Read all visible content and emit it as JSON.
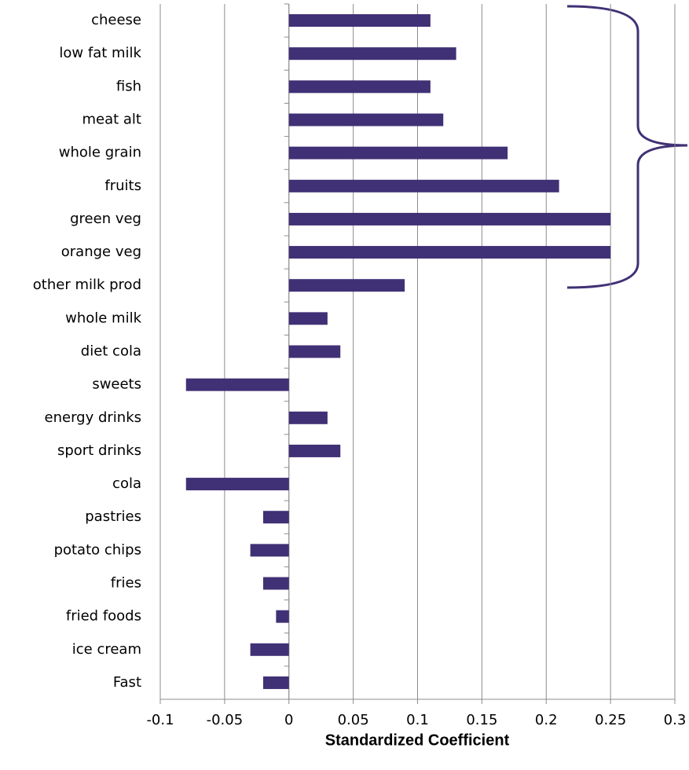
{
  "chart_data": {
    "type": "barh",
    "x_label": "Standardized Coefficient",
    "categories": [
      "cheese",
      "low fat milk",
      "fish",
      "meat alt",
      "whole grain",
      "fruits",
      "green veg",
      "orange veg",
      "other milk prod",
      "whole milk",
      "diet cola",
      "sweets",
      "energy drinks",
      "sport drinks",
      "cola",
      "pastries",
      "potato chips",
      "fries",
      "fried foods",
      "ice cream",
      "Fast"
    ],
    "values": [
      0.11,
      0.13,
      0.11,
      0.12,
      0.17,
      0.21,
      0.25,
      0.25,
      0.09,
      0.03,
      0.04,
      -0.08,
      0.03,
      0.04,
      -0.08,
      -0.02,
      -0.03,
      -0.02,
      -0.01,
      -0.03,
      -0.02
    ],
    "color": "#403075",
    "xlim": [
      -0.1,
      0.3
    ],
    "xticks": [
      -0.1,
      -0.05,
      0,
      0.05,
      0.1,
      0.15,
      0.2,
      0.25,
      0.3
    ],
    "grid": true
  }
}
